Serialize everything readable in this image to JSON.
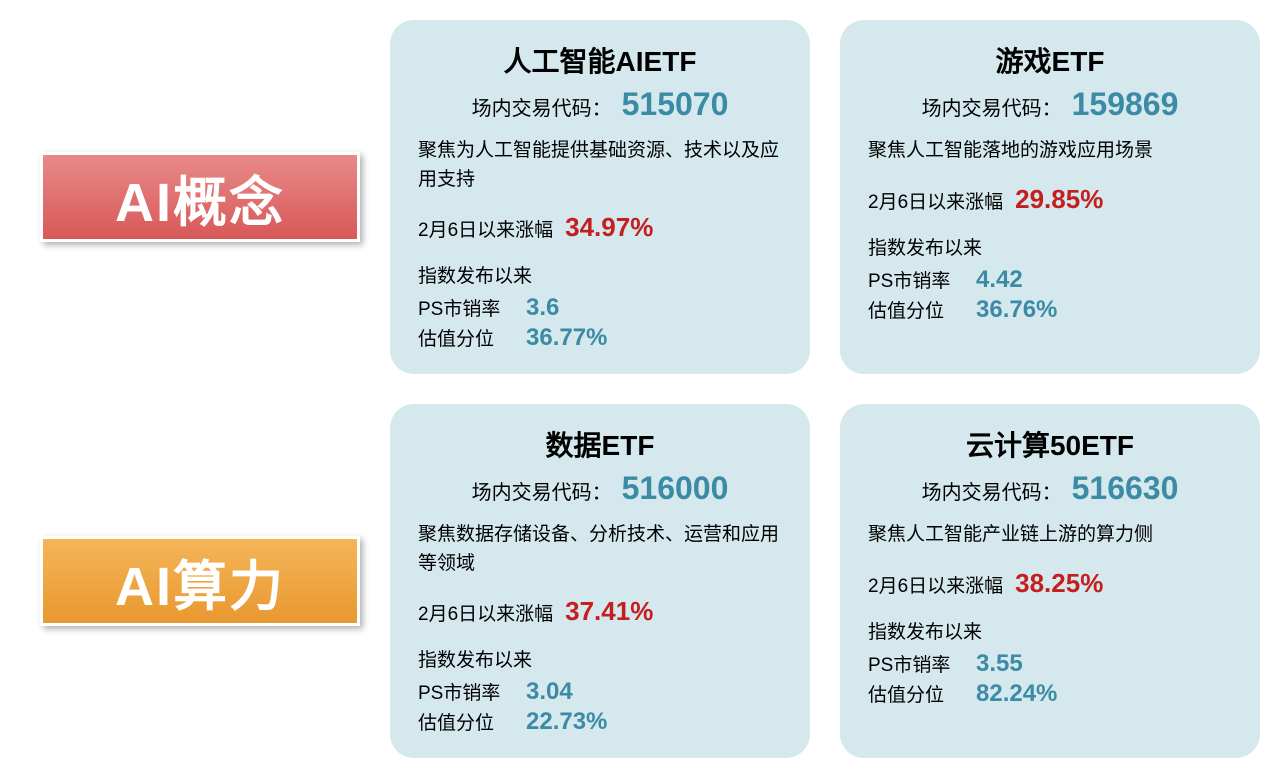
{
  "categories": [
    {
      "label": "AI概念",
      "label_bg": "red",
      "cards": [
        {
          "title": "人工智能AIETF",
          "code_label": "场内交易代码：",
          "code": "515070",
          "description": "聚焦为人工智能提供基础资源、技术以及应用支持",
          "gain_label": "2月6日以来涨幅",
          "gain": "34.97%",
          "metrics_header": "指数发布以来",
          "ps_label": "PS市销率",
          "ps_value": "3.6",
          "val_label": "估值分位",
          "val_value": "36.77%"
        },
        {
          "title": "游戏ETF",
          "code_label": "场内交易代码：",
          "code": "159869",
          "description": "聚焦人工智能落地的游戏应用场景",
          "gain_label": "2月6日以来涨幅",
          "gain": "29.85%",
          "metrics_header": "指数发布以来",
          "ps_label": "PS市销率",
          "ps_value": "4.42",
          "val_label": "估值分位",
          "val_value": "36.76%"
        }
      ]
    },
    {
      "label": "AI算力",
      "label_bg": "orange",
      "cards": [
        {
          "title": "数据ETF",
          "code_label": "场内交易代码：",
          "code": "516000",
          "description": "聚焦数据存储设备、分析技术、运营和应用等领域",
          "gain_label": "2月6日以来涨幅",
          "gain": "37.41%",
          "metrics_header": "指数发布以来",
          "ps_label": "PS市销率",
          "ps_value": "3.04",
          "val_label": "估值分位",
          "val_value": "22.73%"
        },
        {
          "title": "云计算50ETF",
          "code_label": "场内交易代码：",
          "code": "516630",
          "description": "聚焦人工智能产业链上游的算力侧",
          "gain_label": "2月6日以来涨幅",
          "gain": "38.25%",
          "metrics_header": "指数发布以来",
          "ps_label": "PS市销率",
          "ps_value": "3.55",
          "val_label": "估值分位",
          "val_value": "82.24%"
        }
      ]
    }
  ],
  "colors": {
    "card_bg": "#d4e8ed",
    "teal": "#3b8ba5",
    "red_text": "#c41e1e",
    "black": "#000000",
    "white": "#ffffff"
  }
}
